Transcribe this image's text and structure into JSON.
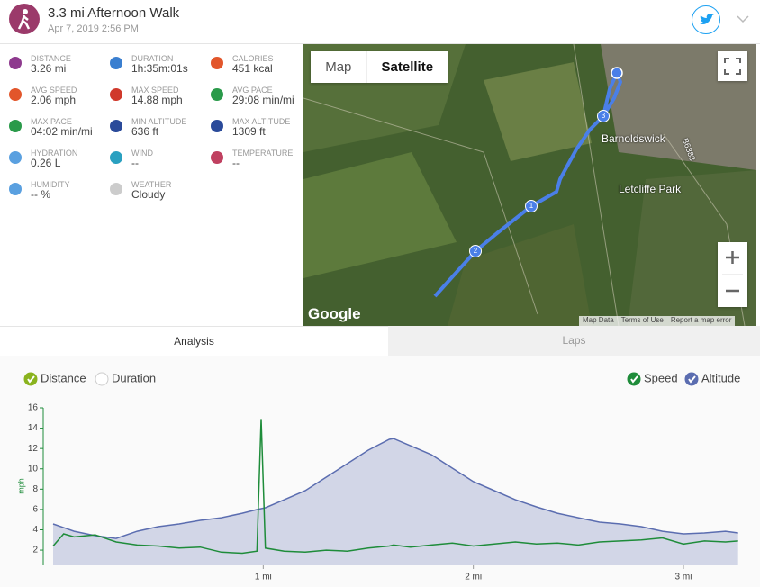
{
  "header": {
    "title": "3.3 mi Afternoon Walk",
    "date": "Apr 7, 2019 2:56 PM"
  },
  "stats": [
    {
      "label": "DISTANCE",
      "value": "3.26 mi",
      "color": "#8e3a8e"
    },
    {
      "label": "DURATION",
      "value": "1h:35m:01s",
      "color": "#3a7fd0"
    },
    {
      "label": "CALORIES",
      "value": "451 kcal",
      "color": "#e2562b"
    },
    {
      "label": "AVG SPEED",
      "value": "2.06 mph",
      "color": "#e2562b"
    },
    {
      "label": "MAX SPEED",
      "value": "14.88 mph",
      "color": "#d0392b"
    },
    {
      "label": "AVG PACE",
      "value": "29:08 min/mi",
      "color": "#2a9a4a"
    },
    {
      "label": "MAX PACE",
      "value": "04:02 min/mi",
      "color": "#2a9a4a"
    },
    {
      "label": "MIN ALTITUDE",
      "value": "636 ft",
      "color": "#2a4a9a"
    },
    {
      "label": "MAX ALTITUDE",
      "value": "1309 ft",
      "color": "#2a4a9a"
    },
    {
      "label": "HYDRATION",
      "value": "0.26 L",
      "color": "#5aa0e0"
    },
    {
      "label": "WIND",
      "value": "--",
      "color": "#2aa0c0"
    },
    {
      "label": "TEMPERATURE",
      "value": "--",
      "color": "#c04060"
    },
    {
      "label": "HUMIDITY",
      "value": "-- %",
      "color": "#5aa0e0"
    },
    {
      "label": "WEATHER",
      "value": "Cloudy",
      "color": "#cccccc"
    }
  ],
  "map": {
    "buttons": [
      "Map",
      "Satellite"
    ],
    "places": [
      "Barnoldswick",
      "Letcliffe Park",
      "B6383"
    ],
    "markers": [
      "1",
      "2",
      "3"
    ],
    "brand": "Google",
    "attribution": [
      "Map Data",
      "Terms of Use",
      "Report a map error"
    ]
  },
  "tabs": [
    "Analysis",
    "Laps"
  ],
  "x_modes": [
    "Distance",
    "Duration"
  ],
  "chart_data": {
    "type": "line",
    "ylabel": "mph",
    "x": [
      0,
      0.05,
      0.1,
      0.2,
      0.3,
      0.4,
      0.5,
      0.6,
      0.7,
      0.8,
      0.9,
      0.97,
      0.99,
      1.01,
      1.1,
      1.2,
      1.3,
      1.4,
      1.5,
      1.6,
      1.62,
      1.7,
      1.8,
      1.9,
      2.0,
      2.1,
      2.2,
      2.3,
      2.4,
      2.5,
      2.6,
      2.7,
      2.8,
      2.9,
      3.0,
      3.1,
      3.2,
      3.26
    ],
    "xlim": [
      0,
      3.27
    ],
    "xticks": [
      {
        "value": 1,
        "label": "1 mi"
      },
      {
        "value": 2,
        "label": "2 mi"
      },
      {
        "value": 3,
        "label": "3 mi"
      }
    ],
    "ylim": [
      0.5,
      16
    ],
    "yticks": [
      2,
      4,
      6,
      8,
      10,
      12,
      14,
      16
    ],
    "y2lim": [
      455,
      1516
    ],
    "series": [
      {
        "name": "Speed",
        "color": "#1e8c3a",
        "values": [
          2.4,
          3.6,
          3.3,
          3.5,
          2.8,
          2.5,
          2.4,
          2.2,
          2.3,
          1.8,
          1.7,
          1.9,
          14.9,
          2.2,
          1.9,
          1.8,
          2.0,
          1.9,
          2.2,
          2.4,
          2.5,
          2.3,
          2.5,
          2.7,
          2.4,
          2.6,
          2.8,
          2.6,
          2.7,
          2.5,
          2.8,
          2.9,
          3.0,
          3.2,
          2.6,
          2.9,
          2.8,
          2.9
        ]
      },
      {
        "name": "Altitude",
        "color": "#5b6db0",
        "axis": "y2",
        "area": true,
        "values": [
          734,
          709,
          685,
          655,
          636,
          685,
          716,
          734,
          758,
          776,
          806,
          831,
          837,
          843,
          897,
          958,
          1049,
          1140,
          1231,
          1304,
          1309,
          1261,
          1201,
          1110,
          1019,
          958,
          897,
          849,
          806,
          776,
          746,
          734,
          716,
          685,
          667,
          673,
          685,
          673
        ]
      }
    ]
  }
}
